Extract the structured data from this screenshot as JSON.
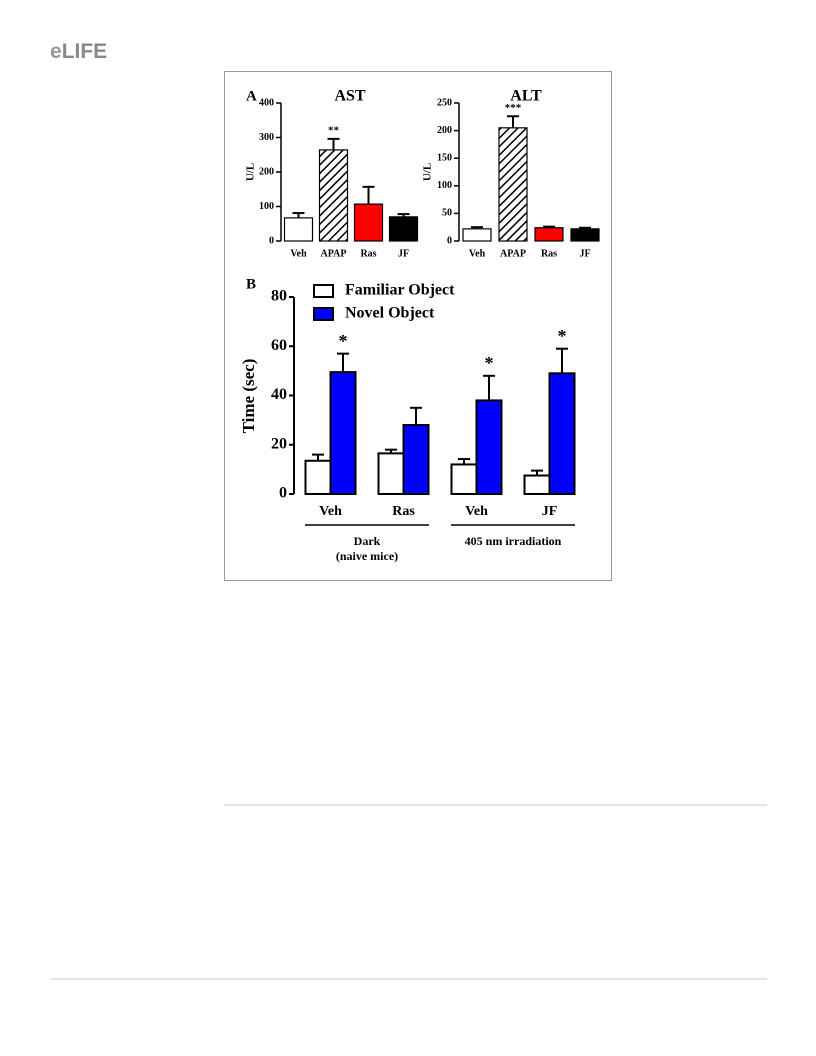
{
  "header": {
    "logo": [
      "e",
      "LIFE"
    ]
  },
  "chart_data": [
    {
      "type": "bar",
      "panel": "A",
      "title": "AST",
      "y_label": "U/L",
      "categories": [
        "Veh",
        "APAP",
        "Ras",
        "JF"
      ],
      "values": [
        67,
        264,
        107,
        70
      ],
      "errors": [
        14,
        32,
        50,
        8
      ],
      "colors": [
        "#ffffff",
        "#ffffff",
        "#ff0000",
        "#000000"
      ],
      "hatched": [
        false,
        true,
        false,
        false
      ],
      "significance": [
        null,
        "**",
        null,
        null
      ],
      "ylim": [
        0,
        400
      ],
      "yticks": [
        0,
        100,
        200,
        300,
        400
      ]
    },
    {
      "type": "bar",
      "title": "ALT",
      "y_label": "U/L",
      "categories": [
        "Veh",
        "APAP",
        "Ras",
        "JF"
      ],
      "values": [
        22,
        205,
        24,
        22
      ],
      "errors": [
        3,
        21,
        2,
        2
      ],
      "colors": [
        "#ffffff",
        "#ffffff",
        "#ff0000",
        "#000000"
      ],
      "hatched": [
        false,
        true,
        false,
        false
      ],
      "significance": [
        null,
        "***",
        null,
        null
      ],
      "ylim": [
        0,
        250
      ],
      "yticks": [
        0,
        50,
        100,
        150,
        200,
        250
      ]
    },
    {
      "type": "grouped_bar",
      "panel": "B",
      "y_label": "Time (sec)",
      "categories": [
        "Veh",
        "Ras",
        "Veh",
        "JF"
      ],
      "series": [
        {
          "name": "Familiar Object",
          "color": "#ffffff",
          "values": [
            13.5,
            16.5,
            12,
            7.5
          ],
          "errors": [
            2.5,
            1.5,
            2.2,
            2
          ]
        },
        {
          "name": "Novel Object",
          "color": "#0000ff",
          "values": [
            49.5,
            28,
            38,
            49
          ],
          "errors": [
            7.5,
            7,
            10,
            10
          ],
          "significance": [
            "*",
            null,
            "*",
            "*"
          ]
        }
      ],
      "group_labels": [
        {
          "text": "Dark",
          "subtext": "(naive mice)"
        },
        {
          "text": "405 nm irradiation"
        }
      ],
      "ylim": [
        0,
        80
      ],
      "yticks": [
        0,
        20,
        40,
        60,
        80
      ]
    }
  ]
}
